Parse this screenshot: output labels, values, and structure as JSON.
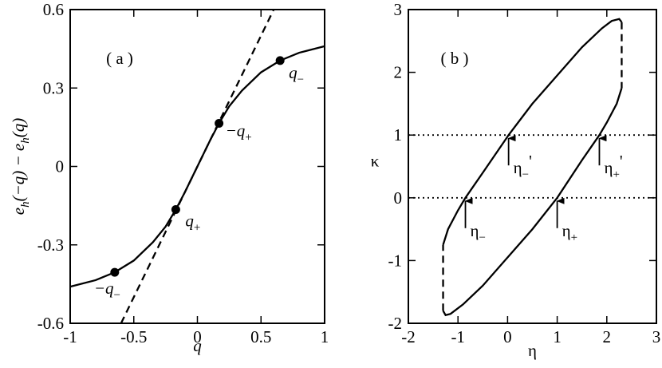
{
  "chart_data": [
    {
      "type": "line",
      "panel_label": "( a )",
      "xlabel": "q",
      "ylabel": [
        "e",
        "h",
        "(−q) − e",
        "h",
        "(q)"
      ],
      "xlim": [
        -1,
        1
      ],
      "ylim": [
        -0.6,
        0.6
      ],
      "xticks": [
        -1,
        -0.5,
        0,
        0.5,
        1
      ],
      "yticks": [
        -0.6,
        -0.3,
        0,
        0.3,
        0.6
      ],
      "series": [
        {
          "type": "line",
          "style": "solid",
          "color": "#000000",
          "x": [
            -1,
            -0.8,
            -0.65,
            -0.5,
            -0.35,
            -0.25,
            -0.17,
            -0.1,
            0,
            0.1,
            0.17,
            0.25,
            0.35,
            0.5,
            0.65,
            0.8,
            1
          ],
          "values": [
            -0.46,
            -0.435,
            -0.405,
            -0.36,
            -0.29,
            -0.23,
            -0.165,
            -0.1,
            0,
            0.1,
            0.165,
            0.23,
            0.29,
            0.36,
            0.405,
            0.435,
            0.46
          ]
        },
        {
          "type": "line",
          "style": "dashed",
          "color": "#000000",
          "x": [
            -0.6,
            0.6
          ],
          "values": [
            -0.6,
            0.6
          ]
        },
        {
          "type": "scatter",
          "color": "#000000",
          "x": [
            -0.65,
            -0.17,
            0.17,
            0.65
          ],
          "values": [
            -0.405,
            -0.165,
            0.165,
            0.405
          ],
          "labels": [
            {
              "text": "−q",
              "sub": "−"
            },
            {
              "text": "q",
              "sub": "+"
            },
            {
              "text": "−q",
              "sub": "+"
            },
            {
              "text": "q",
              "sub": "−"
            }
          ]
        }
      ]
    },
    {
      "type": "line",
      "panel_label": "( b )",
      "xlabel": "η",
      "ylabel": "κ",
      "xlim": [
        -2,
        3
      ],
      "ylim": [
        -2,
        3
      ],
      "xticks": [
        -2,
        -1,
        0,
        1,
        2,
        3
      ],
      "yticks": [
        -2,
        -1,
        0,
        1,
        2,
        3
      ],
      "series": [
        {
          "type": "line",
          "style": "dotted",
          "color": "#000000",
          "x": [
            -2,
            3
          ],
          "values": [
            1,
            1
          ]
        },
        {
          "type": "line",
          "style": "dotted",
          "color": "#000000",
          "x": [
            -2,
            3
          ],
          "values": [
            0,
            0
          ]
        },
        {
          "type": "line",
          "style": "solid",
          "color": "#000000",
          "x": [
            -1.3,
            -1.2,
            -1.0,
            -0.85,
            -0.5,
            0.02,
            0.5,
            1,
            1.5,
            1.9,
            2.1,
            2.25,
            2.3
          ],
          "values": [
            -0.75,
            -0.5,
            -0.2,
            0,
            0.4,
            1,
            1.5,
            1.95,
            2.4,
            2.7,
            2.82,
            2.85,
            2.8
          ]
        },
        {
          "type": "line",
          "style": "dashed",
          "color": "#000000",
          "x": [
            2.3,
            2.3
          ],
          "values": [
            2.8,
            1.75
          ]
        },
        {
          "type": "line",
          "style": "solid",
          "color": "#000000",
          "x": [
            2.3,
            2.2,
            2.0,
            1.85,
            1.5,
            1,
            0.5,
            0,
            -0.5,
            -0.9,
            -1.15,
            -1.25,
            -1.3
          ],
          "values": [
            1.75,
            1.5,
            1.2,
            1,
            0.6,
            0,
            -0.5,
            -0.95,
            -1.4,
            -1.7,
            -1.85,
            -1.87,
            -1.8
          ]
        },
        {
          "type": "line",
          "style": "dashed",
          "color": "#000000",
          "x": [
            -1.3,
            -1.3
          ],
          "values": [
            -1.8,
            -0.75
          ]
        }
      ],
      "annotations": [
        {
          "text": "η",
          "sub": "−",
          "x": -0.85,
          "y": 0
        },
        {
          "text": "η",
          "sub": "−",
          "suffix": "'",
          "x": 0.02,
          "y": 1
        },
        {
          "text": "η",
          "sub": "+",
          "x": 1,
          "y": 0
        },
        {
          "text": "η",
          "sub": "+",
          "suffix": "'",
          "x": 1.85,
          "y": 1
        }
      ]
    }
  ]
}
